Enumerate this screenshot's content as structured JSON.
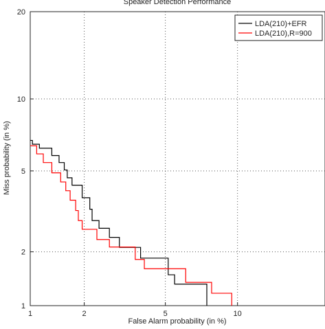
{
  "chart_data": {
    "type": "line",
    "title": "Speaker Detection Performance",
    "xlabel": "False Alarm probability (in %)",
    "ylabel": "Miss probability (in %)",
    "x_scale": "probit",
    "y_scale": "probit",
    "xlim": [
      1,
      20
    ],
    "ylim": [
      1,
      20
    ],
    "x_ticks": [
      {
        "value": 1,
        "label": "1"
      },
      {
        "value": 2,
        "label": "2"
      },
      {
        "value": 5,
        "label": "5"
      },
      {
        "value": 10,
        "label": "10"
      }
    ],
    "y_ticks": [
      {
        "value": 1,
        "label": "1"
      },
      {
        "value": 2,
        "label": "2"
      },
      {
        "value": 5,
        "label": "5"
      },
      {
        "value": 10,
        "label": "10"
      },
      {
        "value": 20,
        "label": "20"
      }
    ],
    "grid": true,
    "legend_position": "top-right",
    "series": [
      {
        "name": "LDA(210)+EFR",
        "color": "#000000",
        "points": [
          [
            1.0,
            6.8
          ],
          [
            1.03,
            6.8
          ],
          [
            1.03,
            6.55
          ],
          [
            1.13,
            6.55
          ],
          [
            1.13,
            6.3
          ],
          [
            1.33,
            6.3
          ],
          [
            1.33,
            5.85
          ],
          [
            1.46,
            5.85
          ],
          [
            1.46,
            5.45
          ],
          [
            1.56,
            5.45
          ],
          [
            1.56,
            5.05
          ],
          [
            1.62,
            5.05
          ],
          [
            1.62,
            4.65
          ],
          [
            1.72,
            4.65
          ],
          [
            1.72,
            4.3
          ],
          [
            1.95,
            4.3
          ],
          [
            1.95,
            3.75
          ],
          [
            2.14,
            3.75
          ],
          [
            2.14,
            3.3
          ],
          [
            2.2,
            3.3
          ],
          [
            2.2,
            2.9
          ],
          [
            2.39,
            2.9
          ],
          [
            2.39,
            2.65
          ],
          [
            2.7,
            2.65
          ],
          [
            2.7,
            2.38
          ],
          [
            3.03,
            2.38
          ],
          [
            3.03,
            2.11
          ],
          [
            3.84,
            2.11
          ],
          [
            3.84,
            1.85
          ],
          [
            5.15,
            1.85
          ],
          [
            5.15,
            1.5
          ],
          [
            5.5,
            1.5
          ],
          [
            5.5,
            1.33
          ],
          [
            7.55,
            1.33
          ],
          [
            7.55,
            1.0
          ]
        ]
      },
      {
        "name": "LDA(210),R=900",
        "color": "#ff0000",
        "points": [
          [
            1.0,
            6.45
          ],
          [
            1.09,
            6.45
          ],
          [
            1.09,
            5.95
          ],
          [
            1.19,
            5.95
          ],
          [
            1.19,
            5.45
          ],
          [
            1.33,
            5.45
          ],
          [
            1.33,
            4.9
          ],
          [
            1.49,
            4.9
          ],
          [
            1.49,
            4.45
          ],
          [
            1.59,
            4.45
          ],
          [
            1.59,
            4.05
          ],
          [
            1.68,
            4.05
          ],
          [
            1.68,
            3.65
          ],
          [
            1.8,
            3.65
          ],
          [
            1.8,
            3.25
          ],
          [
            1.86,
            3.25
          ],
          [
            1.86,
            2.9
          ],
          [
            1.95,
            2.9
          ],
          [
            1.95,
            2.62
          ],
          [
            2.33,
            2.62
          ],
          [
            2.33,
            2.32
          ],
          [
            2.7,
            2.32
          ],
          [
            2.7,
            2.12
          ],
          [
            3.62,
            2.12
          ],
          [
            3.62,
            1.82
          ],
          [
            4.0,
            1.82
          ],
          [
            4.0,
            1.62
          ],
          [
            6.15,
            1.62
          ],
          [
            6.15,
            1.36
          ],
          [
            7.9,
            1.36
          ],
          [
            7.9,
            1.18
          ],
          [
            9.5,
            1.18
          ],
          [
            9.5,
            1.0
          ]
        ]
      }
    ]
  }
}
